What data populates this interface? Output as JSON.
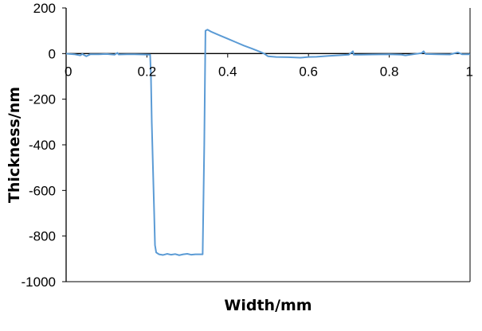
{
  "chart_data": {
    "type": "line",
    "title": "",
    "xlabel": "Width/mm",
    "ylabel": "Thickness/nm",
    "xlim": [
      0,
      1
    ],
    "ylim": [
      -1000,
      200
    ],
    "x_ticks": [
      0,
      0.2,
      0.4,
      0.6,
      0.8,
      1
    ],
    "x_tick_labels": [
      "0",
      "0.2",
      "0.4",
      "0.6",
      "0.8",
      "1"
    ],
    "y_ticks": [
      200,
      0,
      -200,
      -400,
      -600,
      -800,
      -1000
    ],
    "y_tick_labels": [
      "200",
      "0",
      "-200",
      "-400",
      "-600",
      "-800",
      "-1000"
    ],
    "grid": false,
    "legend": "none",
    "series": [
      {
        "color": "#5b9bd5",
        "points": [
          [
            0.0,
            0
          ],
          [
            0.01,
            -2
          ],
          [
            0.02,
            -3
          ],
          [
            0.035,
            -8
          ],
          [
            0.04,
            -2
          ],
          [
            0.05,
            -12
          ],
          [
            0.06,
            -3
          ],
          [
            0.08,
            -3
          ],
          [
            0.1,
            -2
          ],
          [
            0.12,
            -5
          ],
          [
            0.127,
            3
          ],
          [
            0.13,
            -4
          ],
          [
            0.15,
            -3
          ],
          [
            0.17,
            -3
          ],
          [
            0.19,
            -4
          ],
          [
            0.208,
            -5
          ],
          [
            0.21,
            -100
          ],
          [
            0.212,
            -300
          ],
          [
            0.215,
            -500
          ],
          [
            0.218,
            -700
          ],
          [
            0.22,
            -840
          ],
          [
            0.223,
            -872
          ],
          [
            0.23,
            -880
          ],
          [
            0.24,
            -883
          ],
          [
            0.25,
            -878
          ],
          [
            0.26,
            -882
          ],
          [
            0.27,
            -879
          ],
          [
            0.28,
            -884
          ],
          [
            0.29,
            -880
          ],
          [
            0.3,
            -878
          ],
          [
            0.31,
            -882
          ],
          [
            0.32,
            -880
          ],
          [
            0.338,
            -880
          ],
          [
            0.342,
            -400
          ],
          [
            0.345,
            100
          ],
          [
            0.35,
            105
          ],
          [
            0.36,
            95
          ],
          [
            0.38,
            80
          ],
          [
            0.4,
            65
          ],
          [
            0.42,
            50
          ],
          [
            0.44,
            35
          ],
          [
            0.46,
            22
          ],
          [
            0.48,
            8
          ],
          [
            0.49,
            0
          ],
          [
            0.5,
            -12
          ],
          [
            0.52,
            -15
          ],
          [
            0.55,
            -16
          ],
          [
            0.58,
            -18
          ],
          [
            0.6,
            -15
          ],
          [
            0.62,
            -14
          ],
          [
            0.65,
            -10
          ],
          [
            0.68,
            -7
          ],
          [
            0.7,
            -5
          ],
          [
            0.71,
            10
          ],
          [
            0.712,
            -5
          ],
          [
            0.73,
            -5
          ],
          [
            0.76,
            -4
          ],
          [
            0.8,
            -3
          ],
          [
            0.83,
            -5
          ],
          [
            0.84,
            -8
          ],
          [
            0.86,
            -3
          ],
          [
            0.88,
            2
          ],
          [
            0.885,
            10
          ],
          [
            0.89,
            -2
          ],
          [
            0.92,
            -3
          ],
          [
            0.95,
            -4
          ],
          [
            0.97,
            5
          ],
          [
            0.98,
            -3
          ],
          [
            1.0,
            -3
          ]
        ]
      }
    ]
  }
}
